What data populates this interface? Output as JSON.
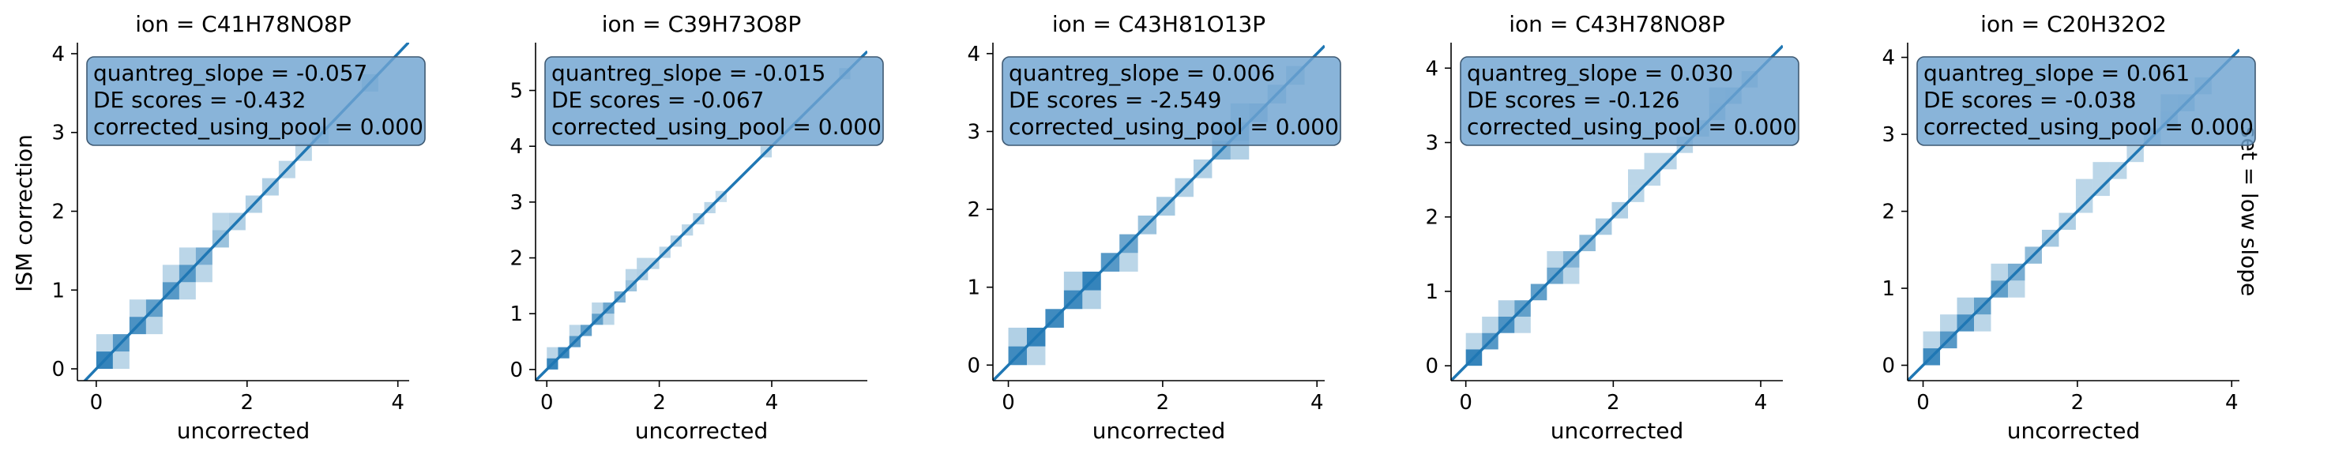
{
  "facet_row_label": "set = low slope",
  "colors": {
    "hist": "#1f77b4",
    "line": "#1f77b4",
    "box": "#6fa3d1",
    "axis": "#000000"
  },
  "chart_data": [
    {
      "type": "heatmap",
      "title": "ion = C41H78NO8P",
      "xlabel": "uncorrected",
      "ylabel": "ISM correction",
      "xlim": [
        -0.25,
        4.15
      ],
      "ylim": [
        -0.15,
        4.1
      ],
      "xticks": [
        0,
        2,
        4
      ],
      "yticks": [
        0,
        1,
        2,
        3,
        4
      ],
      "stats": [
        "quantreg_slope = -0.057",
        "DE scores = -0.432",
        "corrected_using_pool = 0.000"
      ],
      "regression_line": [
        [
          -0.25,
          -0.25
        ],
        [
          4.15,
          4.15
        ]
      ],
      "bins": [
        [
          0.0,
          0.0,
          0.22,
          0.22,
          0.9
        ],
        [
          0.22,
          0.22,
          0.22,
          0.22,
          0.75
        ],
        [
          0.44,
          0.44,
          0.22,
          0.22,
          0.8
        ],
        [
          0.66,
          0.66,
          0.22,
          0.22,
          0.7
        ],
        [
          0.88,
          0.88,
          0.22,
          0.22,
          0.75
        ],
        [
          1.1,
          1.1,
          0.22,
          0.22,
          0.75
        ],
        [
          1.32,
          1.32,
          0.22,
          0.22,
          0.6
        ],
        [
          1.54,
          1.54,
          0.22,
          0.22,
          0.45
        ],
        [
          1.76,
          1.76,
          0.22,
          0.22,
          0.35
        ],
        [
          1.98,
          1.98,
          0.22,
          0.22,
          0.35
        ],
        [
          2.2,
          2.2,
          0.22,
          0.22,
          0.35
        ],
        [
          2.42,
          2.42,
          0.22,
          0.22,
          0.3
        ],
        [
          2.64,
          2.64,
          0.22,
          0.22,
          0.3
        ],
        [
          2.86,
          2.86,
          0.22,
          0.22,
          0.25
        ],
        [
          3.52,
          3.52,
          0.22,
          0.22,
          0.3
        ],
        [
          0.0,
          0.22,
          0.22,
          0.22,
          0.3
        ],
        [
          0.22,
          0.0,
          0.22,
          0.22,
          0.3
        ],
        [
          0.44,
          0.66,
          0.22,
          0.22,
          0.3
        ],
        [
          0.66,
          0.44,
          0.22,
          0.22,
          0.3
        ],
        [
          0.88,
          1.1,
          0.22,
          0.22,
          0.3
        ],
        [
          1.1,
          0.88,
          0.22,
          0.22,
          0.3
        ],
        [
          1.32,
          1.1,
          0.22,
          0.22,
          0.3
        ],
        [
          1.1,
          1.32,
          0.22,
          0.22,
          0.3
        ],
        [
          1.54,
          1.76,
          0.22,
          0.22,
          0.3
        ]
      ]
    },
    {
      "type": "heatmap",
      "title": "ion = C39H73O8P",
      "xlabel": "uncorrected",
      "ylabel": "",
      "xlim": [
        -0.2,
        5.7
      ],
      "ylim": [
        -0.2,
        5.8
      ],
      "xticks": [
        0,
        2,
        4
      ],
      "yticks": [
        0,
        1,
        2,
        3,
        4,
        5
      ],
      "stats": [
        "quantreg_slope = -0.015",
        "DE scores = -0.067",
        "corrected_using_pool = 0.000"
      ],
      "regression_line": [
        [
          -0.2,
          -0.2
        ],
        [
          5.7,
          5.7
        ]
      ],
      "bins": [
        [
          0.0,
          0.0,
          0.2,
          0.2,
          0.9
        ],
        [
          0.2,
          0.2,
          0.2,
          0.2,
          0.85
        ],
        [
          0.4,
          0.4,
          0.2,
          0.2,
          0.75
        ],
        [
          0.6,
          0.6,
          0.2,
          0.2,
          0.7
        ],
        [
          0.8,
          0.8,
          0.2,
          0.2,
          0.7
        ],
        [
          1.0,
          1.0,
          0.2,
          0.2,
          0.65
        ],
        [
          1.2,
          1.2,
          0.2,
          0.2,
          0.55
        ],
        [
          1.4,
          1.4,
          0.2,
          0.2,
          0.45
        ],
        [
          1.6,
          1.6,
          0.2,
          0.2,
          0.35
        ],
        [
          1.8,
          1.8,
          0.2,
          0.2,
          0.3
        ],
        [
          2.0,
          2.0,
          0.2,
          0.2,
          0.3
        ],
        [
          2.2,
          2.2,
          0.2,
          0.2,
          0.3
        ],
        [
          2.4,
          2.4,
          0.2,
          0.2,
          0.3
        ],
        [
          2.6,
          2.6,
          0.2,
          0.2,
          0.3
        ],
        [
          2.8,
          2.8,
          0.2,
          0.2,
          0.3
        ],
        [
          3.0,
          3.0,
          0.2,
          0.2,
          0.25
        ],
        [
          3.8,
          3.8,
          0.2,
          0.2,
          0.3
        ],
        [
          5.2,
          5.2,
          0.2,
          0.2,
          0.3
        ],
        [
          0.0,
          0.2,
          0.2,
          0.2,
          0.3
        ],
        [
          0.4,
          0.6,
          0.2,
          0.2,
          0.3
        ],
        [
          0.8,
          1.0,
          0.2,
          0.2,
          0.3
        ],
        [
          1.0,
          0.8,
          0.2,
          0.2,
          0.3
        ],
        [
          1.4,
          1.6,
          0.2,
          0.2,
          0.3
        ],
        [
          1.6,
          1.8,
          0.2,
          0.2,
          0.3
        ]
      ]
    },
    {
      "type": "heatmap",
      "title": "ion = C43H81O13P",
      "xlabel": "uncorrected",
      "ylabel": "",
      "xlim": [
        -0.2,
        4.1
      ],
      "ylim": [
        -0.2,
        4.1
      ],
      "xticks": [
        0,
        2,
        4
      ],
      "yticks": [
        0,
        1,
        2,
        3,
        4
      ],
      "stats": [
        "quantreg_slope = 0.006",
        "DE scores = -2.549",
        "corrected_using_pool = 0.000"
      ],
      "regression_line": [
        [
          -0.2,
          -0.2
        ],
        [
          4.1,
          4.1
        ]
      ],
      "bins": [
        [
          0.0,
          0.0,
          0.24,
          0.24,
          0.85
        ],
        [
          0.24,
          0.24,
          0.24,
          0.24,
          0.9
        ],
        [
          0.48,
          0.48,
          0.24,
          0.24,
          0.85
        ],
        [
          0.72,
          0.72,
          0.24,
          0.24,
          0.85
        ],
        [
          0.96,
          0.96,
          0.24,
          0.24,
          0.9
        ],
        [
          1.2,
          1.2,
          0.24,
          0.24,
          0.75
        ],
        [
          1.44,
          1.44,
          0.24,
          0.24,
          0.65
        ],
        [
          1.68,
          1.68,
          0.24,
          0.24,
          0.45
        ],
        [
          1.92,
          1.92,
          0.24,
          0.24,
          0.4
        ],
        [
          2.16,
          2.16,
          0.24,
          0.24,
          0.35
        ],
        [
          2.4,
          2.4,
          0.24,
          0.24,
          0.35
        ],
        [
          2.64,
          2.64,
          0.24,
          0.24,
          0.55
        ],
        [
          2.88,
          2.88,
          0.24,
          0.24,
          0.5
        ],
        [
          3.12,
          3.12,
          0.24,
          0.24,
          0.4
        ],
        [
          3.36,
          3.36,
          0.24,
          0.24,
          0.35
        ],
        [
          3.6,
          3.6,
          0.24,
          0.24,
          0.3
        ],
        [
          0.0,
          0.24,
          0.24,
          0.24,
          0.35
        ],
        [
          0.24,
          0.0,
          0.24,
          0.24,
          0.3
        ],
        [
          0.72,
          0.96,
          0.24,
          0.24,
          0.35
        ],
        [
          0.96,
          0.72,
          0.24,
          0.24,
          0.35
        ],
        [
          1.44,
          1.2,
          0.24,
          0.24,
          0.3
        ],
        [
          2.64,
          2.88,
          0.24,
          0.24,
          0.35
        ],
        [
          2.88,
          2.64,
          0.24,
          0.24,
          0.35
        ],
        [
          2.88,
          3.12,
          0.24,
          0.24,
          0.3
        ]
      ]
    },
    {
      "type": "heatmap",
      "title": "ion = C43H78NO8P",
      "xlabel": "uncorrected",
      "ylabel": "",
      "xlim": [
        -0.2,
        4.3
      ],
      "ylim": [
        -0.2,
        4.3
      ],
      "xticks": [
        0,
        2,
        4
      ],
      "yticks": [
        0,
        1,
        2,
        3,
        4
      ],
      "stats": [
        "quantreg_slope = 0.030",
        "DE scores = -0.126",
        "corrected_using_pool = 0.000"
      ],
      "regression_line": [
        [
          -0.2,
          -0.2
        ],
        [
          4.3,
          4.3
        ]
      ],
      "bins": [
        [
          0.0,
          0.0,
          0.22,
          0.22,
          0.9
        ],
        [
          0.22,
          0.22,
          0.22,
          0.22,
          0.75
        ],
        [
          0.44,
          0.44,
          0.22,
          0.22,
          0.8
        ],
        [
          0.66,
          0.66,
          0.22,
          0.22,
          0.7
        ],
        [
          0.88,
          0.88,
          0.22,
          0.22,
          0.7
        ],
        [
          1.1,
          1.1,
          0.22,
          0.22,
          0.65
        ],
        [
          1.32,
          1.32,
          0.22,
          0.22,
          0.55
        ],
        [
          1.54,
          1.54,
          0.22,
          0.22,
          0.5
        ],
        [
          1.76,
          1.76,
          0.22,
          0.22,
          0.4
        ],
        [
          1.98,
          1.98,
          0.22,
          0.22,
          0.35
        ],
        [
          2.2,
          2.2,
          0.22,
          0.22,
          0.3
        ],
        [
          2.42,
          2.42,
          0.22,
          0.22,
          0.3
        ],
        [
          2.64,
          2.64,
          0.22,
          0.22,
          0.3
        ],
        [
          2.86,
          2.86,
          0.22,
          0.22,
          0.3
        ],
        [
          3.08,
          3.08,
          0.22,
          0.22,
          0.3
        ],
        [
          3.3,
          3.3,
          0.22,
          0.22,
          0.35
        ],
        [
          3.52,
          3.52,
          0.22,
          0.22,
          0.35
        ],
        [
          3.74,
          3.74,
          0.22,
          0.22,
          0.3
        ],
        [
          0.0,
          0.22,
          0.22,
          0.22,
          0.3
        ],
        [
          0.22,
          0.44,
          0.22,
          0.22,
          0.3
        ],
        [
          0.44,
          0.66,
          0.22,
          0.22,
          0.35
        ],
        [
          0.66,
          0.44,
          0.22,
          0.22,
          0.3
        ],
        [
          1.1,
          1.32,
          0.22,
          0.22,
          0.3
        ],
        [
          1.32,
          1.1,
          0.22,
          0.22,
          0.3
        ],
        [
          2.2,
          2.42,
          0.22,
          0.22,
          0.3
        ],
        [
          2.42,
          2.64,
          0.22,
          0.22,
          0.3
        ],
        [
          3.3,
          3.52,
          0.22,
          0.22,
          0.3
        ]
      ]
    },
    {
      "type": "heatmap",
      "title": "ion = C20H32O2",
      "xlabel": "uncorrected",
      "ylabel": "",
      "xlim": [
        -0.2,
        4.1
      ],
      "ylim": [
        -0.2,
        4.15
      ],
      "xticks": [
        0,
        2,
        4
      ],
      "yticks": [
        0,
        1,
        2,
        3,
        4
      ],
      "stats": [
        "quantreg_slope = 0.061",
        "DE scores = -0.038",
        "corrected_using_pool = 0.000"
      ],
      "regression_line": [
        [
          -0.2,
          -0.2
        ],
        [
          4.1,
          4.1
        ]
      ],
      "bins": [
        [
          0.0,
          0.0,
          0.22,
          0.22,
          0.85
        ],
        [
          0.22,
          0.22,
          0.22,
          0.22,
          0.75
        ],
        [
          0.44,
          0.44,
          0.22,
          0.22,
          0.8
        ],
        [
          0.66,
          0.66,
          0.22,
          0.22,
          0.7
        ],
        [
          0.88,
          0.88,
          0.22,
          0.22,
          0.7
        ],
        [
          1.1,
          1.1,
          0.22,
          0.22,
          0.6
        ],
        [
          1.32,
          1.32,
          0.22,
          0.22,
          0.5
        ],
        [
          1.54,
          1.54,
          0.22,
          0.22,
          0.4
        ],
        [
          1.76,
          1.76,
          0.22,
          0.22,
          0.35
        ],
        [
          1.98,
          1.98,
          0.22,
          0.22,
          0.3
        ],
        [
          2.2,
          2.2,
          0.22,
          0.22,
          0.3
        ],
        [
          2.42,
          2.42,
          0.22,
          0.22,
          0.3
        ],
        [
          2.64,
          2.64,
          0.22,
          0.22,
          0.3
        ],
        [
          2.86,
          2.86,
          0.22,
          0.22,
          0.3
        ],
        [
          3.08,
          3.08,
          0.22,
          0.22,
          0.35
        ],
        [
          3.3,
          3.3,
          0.22,
          0.22,
          0.35
        ],
        [
          3.52,
          3.52,
          0.22,
          0.22,
          0.3
        ],
        [
          0.0,
          0.22,
          0.22,
          0.22,
          0.3
        ],
        [
          0.22,
          0.44,
          0.22,
          0.22,
          0.3
        ],
        [
          0.44,
          0.66,
          0.22,
          0.22,
          0.35
        ],
        [
          0.66,
          0.44,
          0.22,
          0.22,
          0.3
        ],
        [
          0.88,
          1.1,
          0.22,
          0.22,
          0.3
        ],
        [
          1.1,
          0.88,
          0.22,
          0.22,
          0.3
        ],
        [
          1.98,
          2.2,
          0.22,
          0.22,
          0.3
        ],
        [
          2.2,
          2.42,
          0.22,
          0.22,
          0.3
        ],
        [
          3.08,
          3.3,
          0.22,
          0.22,
          0.3
        ]
      ]
    }
  ]
}
